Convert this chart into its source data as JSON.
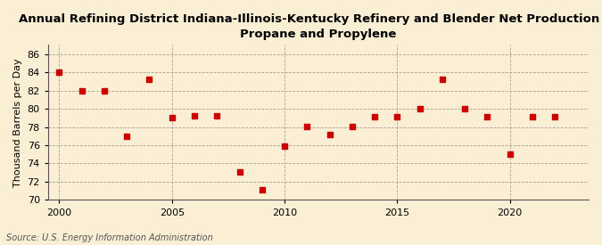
{
  "title_line1": "Annual Refining District Indiana-Illinois-Kentucky Refinery and Blender Net Production of",
  "title_line2": "Propane and Propylene",
  "ylabel": "Thousand Barrels per Day",
  "source": "Source: U.S. Energy Information Administration",
  "background_color": "#faefd4",
  "years": [
    2000,
    2001,
    2002,
    2003,
    2004,
    2005,
    2006,
    2007,
    2008,
    2009,
    2010,
    2011,
    2012,
    2013,
    2014,
    2015,
    2016,
    2017,
    2018,
    2019,
    2020,
    2021,
    2022
  ],
  "values": [
    84.0,
    82.0,
    82.0,
    77.0,
    83.2,
    79.0,
    79.2,
    79.2,
    73.1,
    71.1,
    75.9,
    78.1,
    77.2,
    78.1,
    79.1,
    79.1,
    80.0,
    83.2,
    80.0,
    79.1,
    75.0,
    79.1,
    79.1
  ],
  "marker_color": "#cc0000",
  "marker_size": 4,
  "ylim": [
    70,
    87
  ],
  "yticks": [
    70,
    72,
    74,
    76,
    78,
    80,
    82,
    84,
    86
  ],
  "xlim": [
    1999.5,
    2023.5
  ],
  "xticks": [
    2000,
    2005,
    2010,
    2015,
    2020
  ],
  "grid_color": "#b0a090",
  "title_fontsize": 9.5,
  "label_fontsize": 8,
  "tick_fontsize": 8,
  "source_fontsize": 7
}
